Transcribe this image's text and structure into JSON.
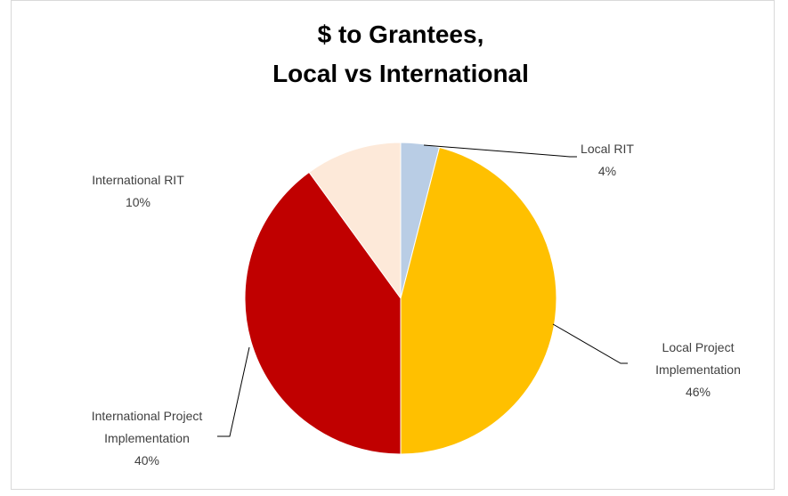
{
  "chart_data": {
    "type": "pie",
    "title": [
      "$ to Grantees,",
      "Local vs International"
    ],
    "categories": [
      "Local RIT",
      "Local Project Implementation",
      "International Project Implementation",
      "International RIT"
    ],
    "values": [
      4,
      46,
      40,
      10
    ],
    "value_labels": [
      "4%",
      "46%",
      "40%",
      "10%"
    ],
    "colors": [
      "#b9cde5",
      "#ffc000",
      "#c00000",
      "#fde9d9"
    ]
  }
}
